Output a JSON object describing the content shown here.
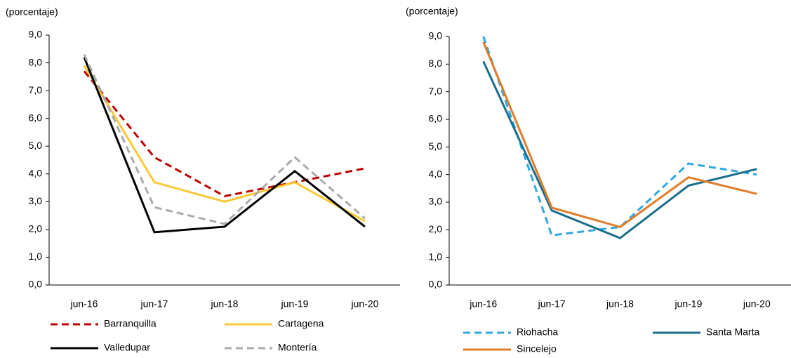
{
  "chart_data": [
    {
      "type": "line",
      "y_label": "(porcentaje)",
      "categories": [
        "jun-16",
        "jun-17",
        "jun-18",
        "jun-19",
        "jun-20"
      ],
      "ylim": [
        0,
        9
      ],
      "yticks": [
        {
          "value": 0,
          "label": "0,0"
        },
        {
          "value": 1,
          "label": "1,0"
        },
        {
          "value": 2,
          "label": "2,0"
        },
        {
          "value": 3,
          "label": "3,0"
        },
        {
          "value": 4,
          "label": "4,0"
        },
        {
          "value": 5,
          "label": "5,0"
        },
        {
          "value": 6,
          "label": "6,0"
        },
        {
          "value": 7,
          "label": "7,0"
        },
        {
          "value": 8,
          "label": "8,0"
        },
        {
          "value": 9,
          "label": "9,0"
        }
      ],
      "series": [
        {
          "name": "Barranquilla",
          "color": "#c00000",
          "dashed": true,
          "values": [
            7.7,
            4.6,
            3.2,
            3.7,
            4.2
          ]
        },
        {
          "name": "Cartagena",
          "color": "#fcc935",
          "dashed": false,
          "values": [
            7.9,
            3.7,
            3.0,
            3.7,
            2.3
          ]
        },
        {
          "name": "Valledupar",
          "color": "#000000",
          "dashed": false,
          "values": [
            8.2,
            1.9,
            2.1,
            4.1,
            2.1
          ]
        },
        {
          "name": "Montería",
          "color": "#aaaaaa",
          "dashed": true,
          "values": [
            8.3,
            2.8,
            2.2,
            4.6,
            2.4
          ]
        }
      ]
    },
    {
      "type": "line",
      "y_label": "(porcentaje)",
      "categories": [
        "jun-16",
        "jun-17",
        "jun-18",
        "jun-19",
        "jun-20"
      ],
      "ylim": [
        0,
        9
      ],
      "yticks": [
        {
          "value": 0,
          "label": "0,0"
        },
        {
          "value": 1,
          "label": "1,0"
        },
        {
          "value": 2,
          "label": "2,0"
        },
        {
          "value": 3,
          "label": "3,0"
        },
        {
          "value": 4,
          "label": "4,0"
        },
        {
          "value": 5,
          "label": "5,0"
        },
        {
          "value": 6,
          "label": "6,0"
        },
        {
          "value": 7,
          "label": "7,0"
        },
        {
          "value": 8,
          "label": "8,0"
        },
        {
          "value": 9,
          "label": "9,0"
        }
      ],
      "series": [
        {
          "name": "Riohacha",
          "color": "#2ea8e0",
          "dashed": true,
          "values": [
            9.0,
            1.8,
            2.1,
            4.4,
            4.0
          ]
        },
        {
          "name": "Santa Marta",
          "color": "#1a6e8e",
          "dashed": false,
          "values": [
            8.1,
            2.7,
            1.7,
            3.6,
            4.2
          ]
        },
        {
          "name": "Sincelejo",
          "color": "#e07b2a",
          "dashed": false,
          "values": [
            8.8,
            2.8,
            2.1,
            3.9,
            3.3
          ]
        }
      ]
    }
  ]
}
